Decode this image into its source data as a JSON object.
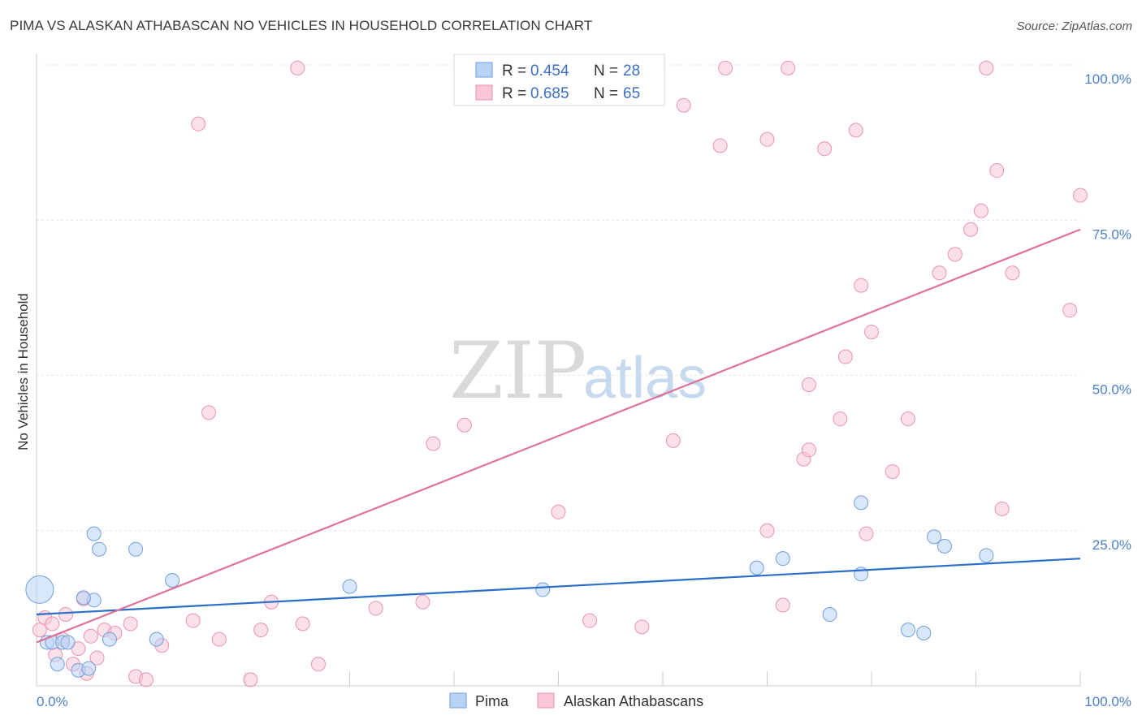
{
  "title": "PIMA VS ALASKAN ATHABASCAN NO VEHICLES IN HOUSEHOLD CORRELATION CHART",
  "source": "Source: ZipAtlas.com",
  "watermark": {
    "zip": "ZIP",
    "atlas": "atlas"
  },
  "colors": {
    "pima_fill": "#b9d3f5",
    "pima_stroke": "#6f9fde",
    "pima_line": "#2b6ec9",
    "alaskan_fill": "#f8c6d5",
    "alaskan_stroke": "#e993b0",
    "alaskan_line": "#e0719a",
    "grid": "#e6e6e6",
    "tick_label": "#4a7fc9"
  },
  "legend": {
    "rows": [
      {
        "r_label": "R = ",
        "r_value": "0.454",
        "n_label": "N = ",
        "n_value": "28"
      },
      {
        "r_label": "R = ",
        "r_value": "0.685",
        "n_label": "N = ",
        "n_value": "65"
      }
    ]
  },
  "chart_data": {
    "type": "scatter",
    "title": "PIMA VS ALASKAN ATHABASCAN NO VEHICLES IN HOUSEHOLD CORRELATION CHART",
    "xlabel": "",
    "ylabel": "No Vehicles in Household",
    "xlim": [
      0,
      100
    ],
    "ylim": [
      0,
      102
    ],
    "x_tick_labels": {
      "0": "0.0%",
      "100": "100.0%"
    },
    "y_ticks": [
      25,
      50,
      75,
      100
    ],
    "y_tick_labels": [
      "25.0%",
      "50.0%",
      "75.0%",
      "100.0%"
    ],
    "legend_position": "bottom",
    "series": [
      {
        "name": "Pima",
        "r": 0.454,
        "n": 28,
        "trend": {
          "x0": 0,
          "y0": 11.5,
          "x1": 100,
          "y1": 20.5
        },
        "points": [
          {
            "x": 0.3,
            "y": 15.5,
            "big": true
          },
          {
            "x": 1.0,
            "y": 7.0
          },
          {
            "x": 1.5,
            "y": 7.0
          },
          {
            "x": 2.5,
            "y": 7.0
          },
          {
            "x": 3.0,
            "y": 7.0
          },
          {
            "x": 2.0,
            "y": 3.5
          },
          {
            "x": 4.0,
            "y": 2.5
          },
          {
            "x": 5.0,
            "y": 2.8
          },
          {
            "x": 5.5,
            "y": 13.8
          },
          {
            "x": 4.5,
            "y": 14.2
          },
          {
            "x": 5.5,
            "y": 24.5
          },
          {
            "x": 6.0,
            "y": 22.0
          },
          {
            "x": 7.0,
            "y": 7.5
          },
          {
            "x": 9.5,
            "y": 22.0
          },
          {
            "x": 11.5,
            "y": 7.5
          },
          {
            "x": 13.0,
            "y": 17.0
          },
          {
            "x": 30.0,
            "y": 16.0
          },
          {
            "x": 48.5,
            "y": 15.5
          },
          {
            "x": 69.0,
            "y": 19.0
          },
          {
            "x": 71.5,
            "y": 20.5
          },
          {
            "x": 76.0,
            "y": 11.5
          },
          {
            "x": 79.0,
            "y": 29.5
          },
          {
            "x": 79.0,
            "y": 18.0
          },
          {
            "x": 83.5,
            "y": 9.0
          },
          {
            "x": 85.0,
            "y": 8.5
          },
          {
            "x": 86.0,
            "y": 24.0
          },
          {
            "x": 87.0,
            "y": 22.5
          },
          {
            "x": 91.0,
            "y": 21.0
          }
        ]
      },
      {
        "name": "Alaskan Athabascans",
        "r": 0.685,
        "n": 65,
        "trend": {
          "x0": 0,
          "y0": 7.0,
          "x1": 100,
          "y1": 73.5
        },
        "points": [
          {
            "x": 0.3,
            "y": 9.0
          },
          {
            "x": 0.8,
            "y": 11.0
          },
          {
            "x": 1.5,
            "y": 10.0
          },
          {
            "x": 1.8,
            "y": 5.0
          },
          {
            "x": 2.5,
            "y": 7.5
          },
          {
            "x": 2.8,
            "y": 11.5
          },
          {
            "x": 3.5,
            "y": 3.5
          },
          {
            "x": 4.0,
            "y": 6.0
          },
          {
            "x": 4.5,
            "y": 14.0
          },
          {
            "x": 4.8,
            "y": 2.0
          },
          {
            "x": 5.2,
            "y": 8.0
          },
          {
            "x": 5.8,
            "y": 4.5
          },
          {
            "x": 6.5,
            "y": 9.0
          },
          {
            "x": 7.5,
            "y": 8.5
          },
          {
            "x": 9.0,
            "y": 10.0
          },
          {
            "x": 9.5,
            "y": 1.5
          },
          {
            "x": 10.5,
            "y": 1.0
          },
          {
            "x": 12.0,
            "y": 6.5
          },
          {
            "x": 15.0,
            "y": 10.5
          },
          {
            "x": 15.5,
            "y": 90.5
          },
          {
            "x": 16.5,
            "y": 44.0
          },
          {
            "x": 17.5,
            "y": 7.5
          },
          {
            "x": 20.5,
            "y": 1.0
          },
          {
            "x": 21.5,
            "y": 9.0
          },
          {
            "x": 22.5,
            "y": 13.5
          },
          {
            "x": 25.0,
            "y": 99.5
          },
          {
            "x": 25.5,
            "y": 10.0
          },
          {
            "x": 27.0,
            "y": 3.5
          },
          {
            "x": 32.5,
            "y": 12.5
          },
          {
            "x": 37.0,
            "y": 13.5
          },
          {
            "x": 38.0,
            "y": 39.0
          },
          {
            "x": 41.0,
            "y": 42.0
          },
          {
            "x": 50.0,
            "y": 28.0
          },
          {
            "x": 53.0,
            "y": 10.5
          },
          {
            "x": 58.0,
            "y": 9.5
          },
          {
            "x": 61.0,
            "y": 39.5
          },
          {
            "x": 62.0,
            "y": 93.5
          },
          {
            "x": 65.5,
            "y": 87.0
          },
          {
            "x": 66.0,
            "y": 99.5
          },
          {
            "x": 70.0,
            "y": 25.0
          },
          {
            "x": 70.0,
            "y": 88.0
          },
          {
            "x": 71.5,
            "y": 13.0
          },
          {
            "x": 72.0,
            "y": 99.5
          },
          {
            "x": 73.5,
            "y": 36.5
          },
          {
            "x": 74.0,
            "y": 38.0
          },
          {
            "x": 74.0,
            "y": 48.5
          },
          {
            "x": 75.5,
            "y": 86.5
          },
          {
            "x": 77.0,
            "y": 43.0
          },
          {
            "x": 77.5,
            "y": 53.0
          },
          {
            "x": 78.5,
            "y": 89.5
          },
          {
            "x": 79.0,
            "y": 64.5
          },
          {
            "x": 79.5,
            "y": 24.5
          },
          {
            "x": 80.0,
            "y": 57.0
          },
          {
            "x": 82.0,
            "y": 34.5
          },
          {
            "x": 83.5,
            "y": 43.0
          },
          {
            "x": 86.5,
            "y": 66.5
          },
          {
            "x": 88.0,
            "y": 69.5
          },
          {
            "x": 89.5,
            "y": 73.5
          },
          {
            "x": 90.5,
            "y": 76.5
          },
          {
            "x": 91.0,
            "y": 99.5
          },
          {
            "x": 92.0,
            "y": 83.0
          },
          {
            "x": 92.5,
            "y": 28.5
          },
          {
            "x": 93.5,
            "y": 66.5
          },
          {
            "x": 99.0,
            "y": 60.5
          },
          {
            "x": 100.0,
            "y": 79.0
          }
        ]
      }
    ]
  }
}
